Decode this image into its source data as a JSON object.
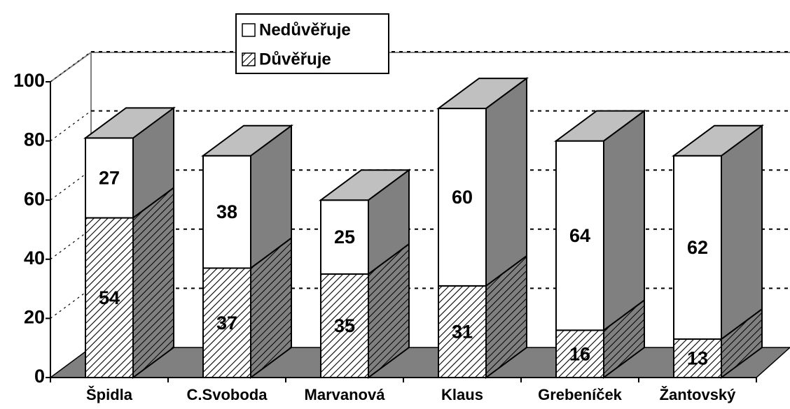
{
  "chart_data": {
    "type": "bar3d_stacked",
    "categories": [
      "Špidla",
      "C.Svoboda",
      "Marvanová",
      "Klaus",
      "Grebeníček",
      "Žantovský"
    ],
    "series": [
      {
        "name": "Důvěřuje",
        "color": "#ffffff",
        "values": [
          54,
          37,
          35,
          31,
          16,
          13
        ]
      },
      {
        "name": "Nedůvěřuje",
        "color": "#ffffff",
        "values": [
          27,
          38,
          25,
          60,
          64,
          62
        ]
      }
    ],
    "ylim": [
      0,
      100
    ],
    "yticks": [
      0,
      20,
      40,
      60,
      80,
      100
    ],
    "grid": true,
    "legend": "top"
  }
}
